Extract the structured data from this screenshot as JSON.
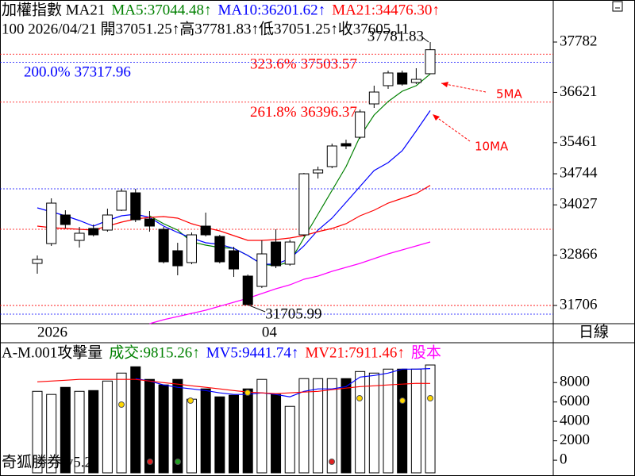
{
  "chart_data": [
    {
      "type": "candlestick",
      "header": [
        {
          "text": "加權指數 MA21",
          "color": "#000000"
        },
        {
          "text": "MA5:37044.48↑",
          "color": "#008000"
        },
        {
          "text": "MA10:36201.62↑",
          "color": "#0000ff"
        },
        {
          "text": "MA21:34476.30↑",
          "color": "#ff0000"
        }
      ],
      "subheader": "100 2026/04/21 開37051.25↑高37781.83↑低37051.25↑收37605.11",
      "period": "日線",
      "categories": [
        "2026",
        null,
        null,
        null,
        null,
        null,
        null,
        null,
        null,
        null,
        null,
        null,
        null,
        null,
        null,
        null,
        "04",
        null,
        null,
        null,
        null,
        null,
        null,
        null,
        null,
        null,
        null,
        null,
        null
      ],
      "open": [
        32677,
        33134,
        33793,
        33207,
        33482,
        33445,
        33903,
        34305,
        33701,
        33463,
        32969,
        32695,
        33537,
        33298,
        32969,
        32384,
        32146,
        33170,
        32658,
        33335,
        34762,
        34909,
        35440,
        35586,
        36355,
        36776,
        37069,
        36849,
        37051.25
      ],
      "high": [
        32860,
        34177,
        33903,
        33518,
        33573,
        33939,
        34397,
        34397,
        33884,
        33518,
        33152,
        33390,
        33848,
        33335,
        33060,
        32420,
        33207,
        33463,
        33225,
        34762,
        34909,
        35440,
        35531,
        36226,
        36776,
        37123,
        37123,
        37178,
        37781.83
      ],
      "low": [
        32438,
        33079,
        33482,
        33042,
        33298,
        33408,
        33884,
        33628,
        33408,
        32677,
        32402,
        32658,
        33298,
        32677,
        32365,
        31705.99,
        32110,
        32567,
        32621,
        33298,
        34634,
        34872,
        35311,
        35549,
        36263,
        36702,
        36776,
        36812,
        37051.25
      ],
      "close": [
        32768,
        34067,
        33573,
        33372,
        33335,
        33793,
        34342,
        33683,
        33537,
        32713,
        32621,
        33335,
        33335,
        32713,
        32548,
        31725,
        32896,
        32621,
        33170,
        34744,
        34835,
        35385,
        35385,
        36171,
        36629,
        37069,
        36812,
        36922,
        37605.11
      ],
      "up_color": "#ffffff",
      "down_color": "#000000",
      "series": [
        {
          "name": "MA5",
          "color": "#008000",
          "values": [
            null,
            null,
            null,
            null,
            null,
            null,
            null,
            null,
            33774,
            33591,
            33445,
            33170,
            33097,
            33042,
            33024,
            32859,
            32658,
            32621,
            32713,
            33262,
            33811,
            34360,
            34909,
            35604,
            36098,
            36410,
            36647,
            36776,
            37044.48
          ]
        },
        {
          "name": "MA10",
          "color": "#0000ff",
          "values": [
            33957,
            33866,
            33774,
            33665,
            33536,
            33665,
            33774,
            33811,
            33738,
            33536,
            33390,
            33262,
            33152,
            33116,
            33024,
            32859,
            32658,
            32658,
            32786,
            33079,
            33445,
            33719,
            34085,
            34451,
            34817,
            35000,
            35275,
            35732,
            36201.62
          ]
        },
        {
          "name": "MA21",
          "color": "#ff0000",
          "values": [
            33536,
            33500,
            33482,
            33463,
            33445,
            33536,
            33628,
            33701,
            33738,
            33756,
            33719,
            33591,
            33500,
            33427,
            33317,
            33207,
            33207,
            33225,
            33262,
            33317,
            33408,
            33482,
            33591,
            33774,
            33902,
            34067,
            34177,
            34287,
            34476.3
          ]
        },
        {
          "color": "#ff00ff",
          "values": [
            null,
            null,
            null,
            null,
            null,
            null,
            null,
            null,
            31286,
            31377,
            31450,
            31523,
            31597,
            31688,
            31780,
            31871,
            31981,
            32091,
            32182,
            32310,
            32384,
            32493,
            32585,
            32676,
            32786,
            32896,
            32987,
            33079,
            33170
          ]
        }
      ],
      "levels": [
        {
          "value": 37503.57,
          "label": "323.6%",
          "color": "#ff0000"
        },
        {
          "value": 37317.96,
          "label": "200.0%",
          "color": "#0000ff"
        },
        {
          "value": 36396.37,
          "label": "261.8%",
          "color": "#ff0000"
        },
        {
          "value": 34397,
          "color": "#0000ff"
        },
        {
          "value": 33463,
          "color": "#ff0000"
        },
        {
          "value": 31705.99,
          "color": "#ff0000"
        },
        {
          "value": 31505,
          "color": "#0000ff"
        }
      ],
      "annotations": [
        "5MA",
        "10MA"
      ],
      "ylim": [
        31286,
        38752
      ],
      "yticks": [
        37782,
        36621,
        35461,
        34744,
        34027,
        32866,
        31706
      ]
    },
    {
      "type": "bar",
      "header": [
        {
          "text": "A-M.001攻擊量",
          "color": "#000000"
        },
        {
          "text": "成交:9815.26↑",
          "color": "#008000"
        },
        {
          "text": "MV5:9441.74↑",
          "color": "#0000ff"
        },
        {
          "text": "MV21:7911.46↑",
          "color": "#ff0000"
        },
        {
          "text": "股本",
          "color": "#ff00ff"
        }
      ],
      "footer": "奇狐勝券 v5.2",
      "values": [
        7100,
        6780,
        7510,
        7100,
        7180,
        8160,
        8980,
        9630,
        8330,
        7760,
        8330,
        6290,
        7350,
        6530,
        6690,
        7350,
        8330,
        6780,
        5550,
        8410,
        8410,
        8410,
        8410,
        9140,
        8980,
        9390,
        9390,
        9390,
        9815.26
      ],
      "series": [
        {
          "name": "MV5",
          "color": "#0000ff",
          "values": [
            null,
            null,
            null,
            null,
            null,
            null,
            null,
            8410,
            8160,
            7760,
            7510,
            7350,
            7180,
            6940,
            6780,
            6780,
            6940,
            6780,
            6530,
            7100,
            7350,
            7350,
            7590,
            8570,
            8730,
            8980,
            9390,
            9390,
            9441.74
          ]
        },
        {
          "name": "MV21",
          "color": "#ff0000",
          "values": [
            8080,
            8160,
            8240,
            8330,
            8330,
            8330,
            8330,
            8330,
            8160,
            8000,
            7840,
            7670,
            7510,
            7350,
            7180,
            7020,
            6940,
            6860,
            6940,
            7020,
            7100,
            7270,
            7430,
            7590,
            7670,
            7760,
            7840,
            7920,
            7911.46
          ]
        }
      ],
      "ylim": [
        -1300,
        11700
      ],
      "yticks": [
        8000,
        6000,
        4000,
        2000,
        0
      ]
    }
  ]
}
